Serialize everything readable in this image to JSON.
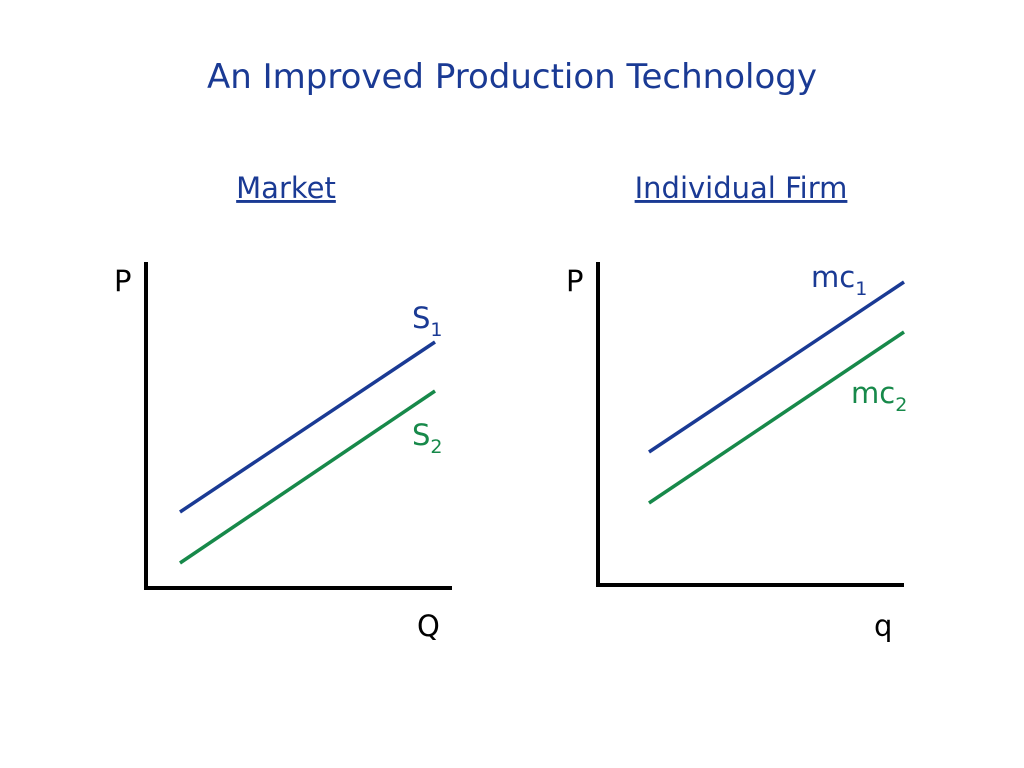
{
  "header": {
    "title": "An Improved Production Technology"
  },
  "panels": [
    {
      "heading": "Market",
      "y_axis_label": "P",
      "x_axis_label": "Q",
      "curves": [
        {
          "label": "S",
          "subscript": "1"
        },
        {
          "label": "S",
          "subscript": "2"
        }
      ]
    },
    {
      "heading": "Individual Firm",
      "y_axis_label": "P",
      "x_axis_label": "q",
      "curves": [
        {
          "label": "mc",
          "subscript": "1"
        },
        {
          "label": "mc",
          "subscript": "2"
        }
      ]
    }
  ]
}
